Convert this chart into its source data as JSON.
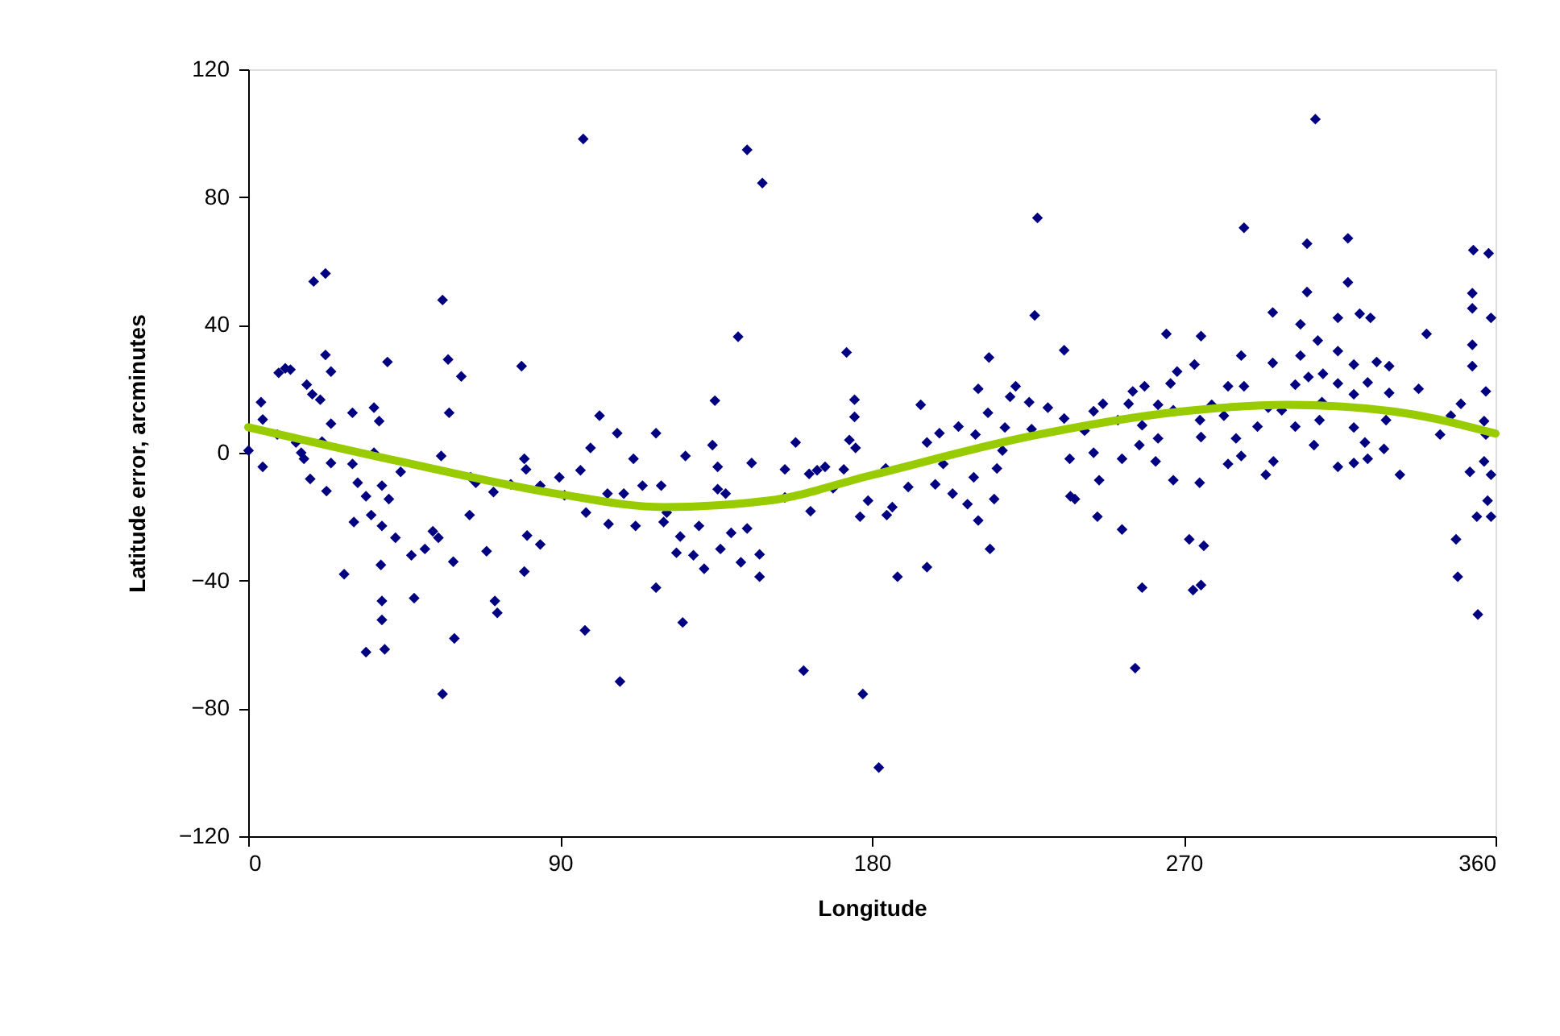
{
  "chart_data": {
    "type": "scatter",
    "xlabel": "Longitude",
    "ylabel": "Latitude error, arcminutes",
    "xlim": [
      0,
      360
    ],
    "xticks": [
      0,
      90,
      180,
      270,
      360
    ],
    "ylim": [
      -120,
      120
    ],
    "yticks": [
      -120,
      -80,
      -40,
      0,
      40,
      80,
      120
    ],
    "grid": false,
    "marker": "diamond",
    "series": [
      {
        "color": "#000080",
        "x": [
          0.1,
          3.7,
          4.2,
          4.2,
          8.4,
          8.8,
          10.7,
          12.2,
          13.8,
          15.3,
          16.9,
          18.5,
          20.8,
          18.9,
          22.3,
          16.1,
          17.9,
          21.3,
          22.3,
          23.9,
          23.9,
          23.9,
          22.6,
          27.7,
          30.1,
          30.1,
          30.5,
          31.6,
          34,
          34,
          35.5,
          36.3,
          37.8,
          36.3,
          38.6,
          39.4,
          38.6,
          38.6,
          38.3,
          38.6,
          40.2,
          40.6,
          42.5,
          44,
          47.1,
          47.9,
          51,
          53.3,
          54.9,
          55.7,
          56.1,
          57.7,
          58,
          61.5,
          59.2,
          59.5,
          56.1,
          64.2,
          63.9,
          65.7,
          68.8,
          71.2,
          71.9,
          70.8,
          75.8,
          78.9,
          79.7,
          80.2,
          80.5,
          79.7,
          84.3,
          84.3,
          89.8,
          91.3,
          95.9,
          97.5,
          98.8,
          96.7,
          101.4,
          97.2,
          103.7,
          104,
          106.5,
          108.4,
          107.3,
          111.2,
          111.8,
          113.8,
          117.7,
          119.2,
          117.7,
          119.9,
          144,
          148.4,
          141.4,
          134.7,
          120.8,
          126.2,
          125.4,
          124.7,
          123.6,
          128.5,
          130.1,
          131.6,
          134,
          135.5,
          135.5,
          137.8,
          136.3,
          139.4,
          142.2,
          144,
          145.3,
          147.6,
          147.6,
          154.9,
          154.9,
          158,
          160.3,
          162.3,
          161.9,
          164.2,
          166.5,
          168.8,
          171.9,
          172.7,
          173.5,
          175,
          175,
          175.3,
          176.6,
          178.9,
          177.4,
          182,
          184,
          184.3,
          185.9,
          187.4,
          190.5,
          194.1,
          195.9,
          195.9,
          199.5,
          198.3,
          200.6,
          203.3,
          205,
          207.6,
          209.4,
          209.9,
          210.7,
          210.7,
          213.5,
          213.8,
          214.1,
          215.3,
          216.1,
          217.7,
          218.4,
          219.9,
          221.5,
          225.4,
          226.1,
          227,
          227.8,
          230.8,
          235.5,
          235.5,
          237.1,
          237.3,
          308,
          287.4,
          305.6,
          317.4,
          353.6,
          358,
          305.6,
          317.4,
          353.3,
          353.3,
          358.7,
          295.7,
          314.5,
          320.8,
          323.9,
          303.7,
          265,
          275,
          340.1,
          308.7,
          353.3,
          286.6,
          295.7,
          303.7,
          314.5,
          273.1,
          268.1,
          353.3,
          319.1,
          325.7,
          329.3,
          266.2,
          302.2,
          306,
          310.2,
          314.5,
          323.1,
          337.8,
          357.2,
          255.3,
          258.7,
          282.8,
          287.4,
          329.3,
          246.7,
          244,
          254.1,
          262.6,
          278.1,
          309.9,
          319.1,
          350,
          241.4,
          251,
          258,
          267,
          274.7,
          281.6,
          294.4,
          298.3,
          302.2,
          309.2,
          319.1,
          328.4,
          347.1,
          356.7,
          344,
          357.2,
          257.2,
          262.6,
          275,
          285.1,
          291.3,
          307.6,
          322.3,
          327.8,
          244,
          252.2,
          261.9,
          282.8,
          286.6,
          295.9,
          314.5,
          319.1,
          323.1,
          332.4,
          356.7,
          352.6,
          358.7,
          245.6,
          267,
          274.6,
          293.7,
          238.6,
          357.7,
          245.1,
          252.2,
          354.6,
          358.7,
          271.6,
          275.8,
          348.6,
          258,
          272.7,
          275,
          349.1,
          354.9,
          256
        ],
        "values": [
          0.7,
          15.8,
          10.4,
          -4.4,
          5.7,
          25,
          26.4,
          26,
          3.2,
          0,
          21.3,
          18.3,
          16.6,
          53.6,
          56.1,
          -1.9,
          -8.2,
          3.5,
          30.6,
          25.4,
          9.1,
          -3.2,
          -12,
          -38,
          12.5,
          -3.5,
          -21.7,
          -9.4,
          -13.6,
          -62.4,
          -19.5,
          14.1,
          9.9,
          0,
          -10.3,
          -61.5,
          -46.4,
          -52.3,
          -35.1,
          -22.9,
          28.4,
          -14.5,
          -26.6,
          -6,
          -32.1,
          -45.5,
          -30.1,
          -24.6,
          -26.6,
          -1,
          47.8,
          29.2,
          12.5,
          23.9,
          -34.1,
          -58.1,
          -75.5,
          -7.7,
          -19.5,
          -9.4,
          -30.8,
          -46.4,
          -50.1,
          -12.3,
          -9.9,
          27.1,
          -1.9,
          -5.2,
          -25.9,
          -37.2,
          -28.7,
          -10.3,
          -7.7,
          -13.3,
          -5.5,
          -18.7,
          1.5,
          98.2,
          11.6,
          -55.6,
          -12.8,
          -22.3,
          6.1,
          -12.8,
          -71.6,
          -1.9,
          -22.9,
          -10.3,
          6.1,
          -10.3,
          -42.2,
          -21.7,
          94.8,
          84.4,
          36.3,
          16.3,
          -18.7,
          -1,
          -53.1,
          -26.2,
          -31.3,
          -32.1,
          -22.9,
          -36.3,
          2.4,
          -4.4,
          -11.4,
          -12.8,
          -30.1,
          -25.1,
          -34.3,
          -23.7,
          -3.2,
          -31.8,
          -38.8,
          -5.2,
          -14,
          3.2,
          -68.2,
          -18.3,
          -6.6,
          -5.5,
          -4.4,
          -11.1,
          -5.2,
          31.4,
          4,
          16.6,
          11.2,
          1.5,
          -20,
          -15,
          -75.5,
          -98.5,
          -4.9,
          -19.5,
          -17,
          -38.8,
          -10.7,
          15,
          3.2,
          -35.8,
          6.1,
          -9.9,
          -3.5,
          -12.8,
          8.2,
          -16.1,
          -7.7,
          5.7,
          20,
          -21.2,
          12.5,
          29.8,
          -30.1,
          -14.5,
          -4.9,
          0.7,
          7.9,
          17.5,
          20.8,
          15.8,
          7.4,
          43,
          73.5,
          14.1,
          32.1,
          10.7,
          -1.9,
          -13.6,
          104.4,
          70.4,
          65.4,
          67.1,
          63.4,
          62.4,
          50.3,
          53.3,
          49.9,
          45.2,
          42.2,
          43.9,
          42.2,
          43.5,
          42.2,
          40.2,
          37.2,
          36.5,
          37.2,
          35.1,
          33.8,
          30.4,
          28.1,
          30.4,
          31.8,
          27.6,
          25.4,
          27.1,
          27.6,
          28.4,
          27.1,
          21.7,
          21.3,
          23.7,
          24.7,
          21.7,
          22,
          20,
          19.2,
          19.2,
          20.8,
          20.8,
          20.8,
          18.7,
          15.3,
          13,
          15.3,
          15,
          15,
          15.8,
          18.3,
          15.3,
          6.9,
          10.2,
          8.6,
          13.3,
          10.2,
          11.6,
          14.1,
          13.3,
          8.2,
          10.2,
          7.9,
          10.2,
          11.6,
          9.9,
          5.7,
          5.7,
          2.4,
          4.5,
          4.9,
          4.5,
          8.2,
          2.4,
          3.2,
          1.2,
          0,
          -1.9,
          -2.7,
          -3.5,
          -1,
          -2.7,
          -4.4,
          -3.2,
          -1.9,
          -6.9,
          -2.7,
          -6,
          -6.9,
          -8.6,
          -8.6,
          -9.4,
          -6.9,
          -14.5,
          -15,
          -20,
          -24,
          -20,
          -20,
          -27.1,
          -29.1,
          -27.1,
          -42.2,
          -43,
          -41.4,
          -38.8,
          -50.6,
          -67.4
        ]
      },
      {
        "type": "line",
        "color": "#99cc00",
        "marker": "none",
        "line_style": "solid",
        "x": [
          0,
          45,
          90,
          120,
          150,
          180,
          225,
          270,
          300,
          330,
          360
        ],
        "values": [
          8,
          -3,
          -13,
          -17,
          -15,
          -7,
          5,
          13,
          15,
          13,
          6
        ]
      }
    ]
  }
}
